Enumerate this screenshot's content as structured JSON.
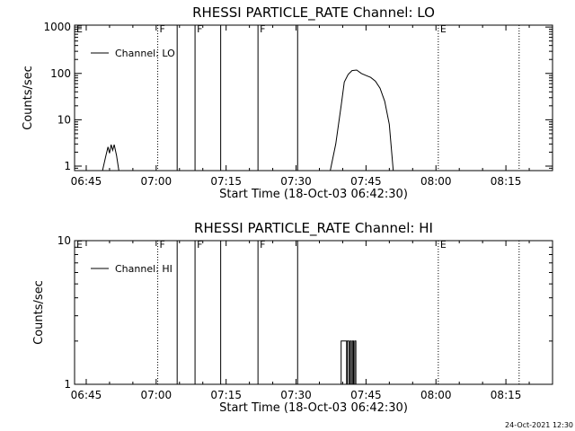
{
  "footer": {
    "timestamp": "24-Oct-2021 12:30"
  },
  "chart_data": [
    {
      "type": "line",
      "title": "RHESSI PARTICLE_RATE Channel: LO",
      "xlabel": "Start Time (18-Oct-03 06:42:30)",
      "ylabel": "Counts/sec",
      "yscale": "log",
      "xlim": [
        "06:42:30",
        "08:25:00"
      ],
      "ylim": [
        0.8,
        1100
      ],
      "xticks": [
        "06:45",
        "07:00",
        "07:15",
        "07:30",
        "07:45",
        "08:00",
        "08:15"
      ],
      "yticks": [
        1,
        10,
        100,
        1000
      ],
      "ytick_labels": [
        "1",
        "10",
        "100",
        "1000"
      ],
      "legend": {
        "label": "Channel: LO",
        "placement": "top-left"
      },
      "event_lines": [
        {
          "time": "06:42:30",
          "label": "E",
          "style": "dotted"
        },
        {
          "time": "07:00:20",
          "label": "F",
          "style": "dotted"
        },
        {
          "time": "07:04:30",
          "label": "",
          "style": "solid"
        },
        {
          "time": "07:08:20",
          "label": "F",
          "style": "solid"
        },
        {
          "time": "07:13:50",
          "label": "",
          "style": "solid"
        },
        {
          "time": "07:21:50",
          "label": "F",
          "style": "solid"
        },
        {
          "time": "07:30:20",
          "label": "",
          "style": "solid"
        },
        {
          "time": "08:00:30",
          "label": "E",
          "style": "dotted"
        },
        {
          "time": "08:17:50",
          "label": "",
          "style": "dotted"
        }
      ],
      "series": [
        {
          "segments": [
            [
              {
                "t": "06:48:30",
                "y": 0.8
              },
              {
                "t": "06:49:10",
                "y": 1.6
              },
              {
                "t": "06:49:40",
                "y": 2.6
              },
              {
                "t": "06:50:00",
                "y": 1.9
              },
              {
                "t": "06:50:20",
                "y": 2.9
              },
              {
                "t": "06:50:40",
                "y": 2.2
              },
              {
                "t": "06:51:00",
                "y": 2.9
              },
              {
                "t": "06:51:30",
                "y": 1.7
              },
              {
                "t": "06:52:00",
                "y": 0.8
              }
            ],
            [
              {
                "t": "07:37:20",
                "y": 0.8
              },
              {
                "t": "07:38:30",
                "y": 3
              },
              {
                "t": "07:39:40",
                "y": 20
              },
              {
                "t": "07:40:20",
                "y": 65
              },
              {
                "t": "07:41:10",
                "y": 95
              },
              {
                "t": "07:42:00",
                "y": 115
              },
              {
                "t": "07:43:00",
                "y": 118
              },
              {
                "t": "07:44:00",
                "y": 100
              },
              {
                "t": "07:45:00",
                "y": 90
              },
              {
                "t": "07:46:00",
                "y": 82
              },
              {
                "t": "07:47:00",
                "y": 68
              },
              {
                "t": "07:48:00",
                "y": 48
              },
              {
                "t": "07:49:00",
                "y": 25
              },
              {
                "t": "07:50:00",
                "y": 8
              },
              {
                "t": "07:50:50",
                "y": 0.8
              }
            ]
          ]
        }
      ]
    },
    {
      "type": "line",
      "title": "RHESSI PARTICLE_RATE Channel: HI",
      "xlabel": "Start Time (18-Oct-03 06:42:30)",
      "ylabel": "Counts/sec",
      "yscale": "log",
      "xlim": [
        "06:42:30",
        "08:25:00"
      ],
      "ylim": [
        1,
        10
      ],
      "xticks": [
        "06:45",
        "07:00",
        "07:15",
        "07:30",
        "07:45",
        "08:00",
        "08:15"
      ],
      "yticks": [
        1,
        10
      ],
      "ytick_labels": [
        "1",
        "10"
      ],
      "legend": {
        "label": "Channel: HI",
        "placement": "top-left"
      },
      "event_lines": [
        {
          "time": "06:42:30",
          "label": "E",
          "style": "dotted"
        },
        {
          "time": "07:00:20",
          "label": "F",
          "style": "dotted"
        },
        {
          "time": "07:04:30",
          "label": "",
          "style": "solid"
        },
        {
          "time": "07:08:20",
          "label": "F",
          "style": "solid"
        },
        {
          "time": "07:13:50",
          "label": "",
          "style": "solid"
        },
        {
          "time": "07:21:50",
          "label": "F",
          "style": "solid"
        },
        {
          "time": "07:30:20",
          "label": "",
          "style": "solid"
        },
        {
          "time": "08:00:30",
          "label": "E",
          "style": "dotted"
        },
        {
          "time": "08:17:50",
          "label": "",
          "style": "dotted"
        }
      ],
      "series": [
        {
          "segments": [
            [
              {
                "t": "07:39:40",
                "y": 1
              },
              {
                "t": "07:39:40",
                "y": 2
              },
              {
                "t": "07:40:50",
                "y": 2
              },
              {
                "t": "07:40:50",
                "y": 1
              },
              {
                "t": "07:41:00",
                "y": 1
              },
              {
                "t": "07:41:00",
                "y": 2
              },
              {
                "t": "07:41:20",
                "y": 2
              },
              {
                "t": "07:41:20",
                "y": 1
              },
              {
                "t": "07:41:35",
                "y": 1
              },
              {
                "t": "07:41:35",
                "y": 2
              },
              {
                "t": "07:41:50",
                "y": 2
              },
              {
                "t": "07:41:50",
                "y": 1
              },
              {
                "t": "07:42:05",
                "y": 1
              },
              {
                "t": "07:42:05",
                "y": 2
              },
              {
                "t": "07:42:20",
                "y": 2
              },
              {
                "t": "07:42:20",
                "y": 1
              },
              {
                "t": "07:42:35",
                "y": 1
              },
              {
                "t": "07:42:35",
                "y": 2
              },
              {
                "t": "07:42:50",
                "y": 2
              },
              {
                "t": "07:42:50",
                "y": 1
              }
            ]
          ]
        }
      ]
    }
  ]
}
